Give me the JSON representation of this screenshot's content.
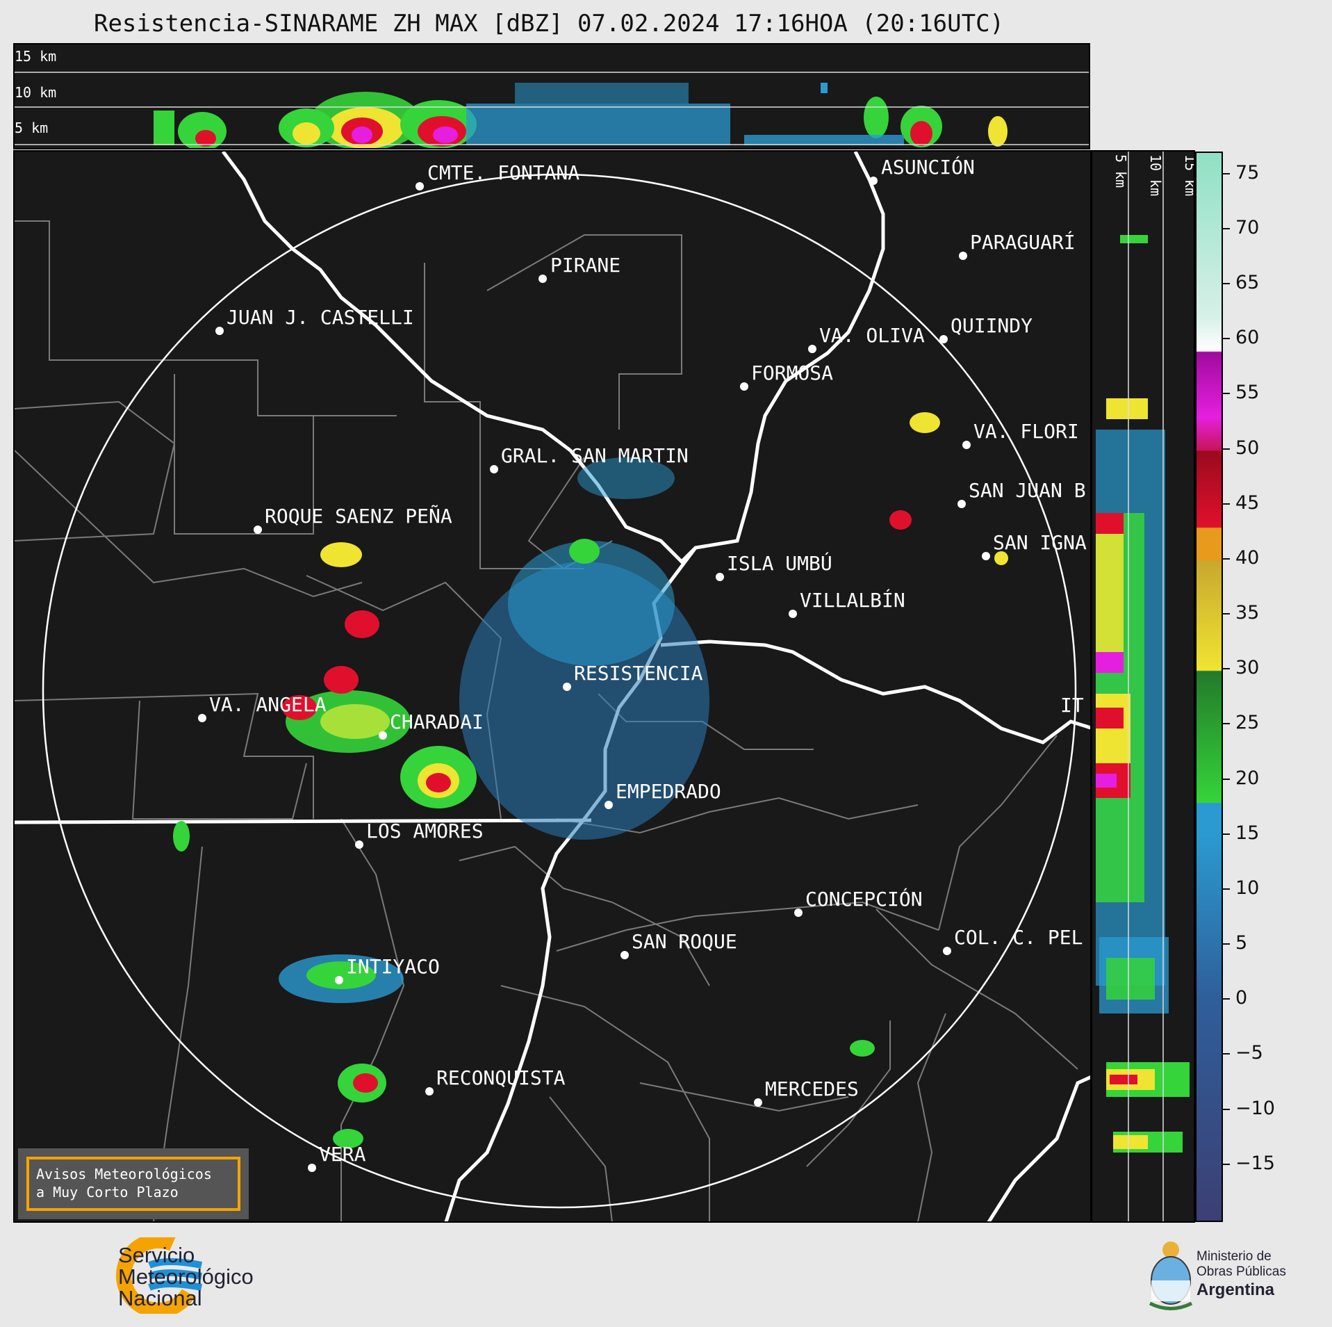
{
  "header": {
    "title": "Resistencia-SINARAME ZH MAX [dBZ] 07.02.2024 17:16HOA (20:16UTC)"
  },
  "top_profile": {
    "levels": [
      {
        "label": "15 km",
        "km": 15
      },
      {
        "label": "10 km",
        "km": 10
      },
      {
        "label": "5 km",
        "km": 5
      }
    ]
  },
  "side_profile": {
    "levels": [
      {
        "label": "5 km",
        "km": 5
      },
      {
        "label": "10 km",
        "km": 10
      },
      {
        "label": "15 km",
        "km": 15
      }
    ]
  },
  "colorbar": {
    "unit": "dBZ",
    "ticks": [
      "75",
      "70",
      "65",
      "60",
      "55",
      "50",
      "45",
      "40",
      "35",
      "30",
      "25",
      "20",
      "15",
      "10",
      "5",
      "0",
      "−5",
      "−10",
      "−15"
    ],
    "tick_values": [
      75,
      70,
      65,
      60,
      55,
      50,
      45,
      40,
      35,
      30,
      25,
      20,
      15,
      10,
      5,
      0,
      -5,
      -10,
      -15
    ],
    "range": [
      -20,
      77
    ],
    "colors": {
      "low": "#3c3f73",
      "blue": "#2a9ad0",
      "green": "#35d43a",
      "yellow": "#f0e432",
      "orange": "#e79a1b",
      "red": "#e0102c",
      "magenta": "#e51fe0",
      "purple": "#a00a9e",
      "white": "#ffffff",
      "teal": "#8fe0c4"
    }
  },
  "map": {
    "cities": [
      {
        "name": "CMTE. FONTANA"
      },
      {
        "name": "PIRANE"
      },
      {
        "name": "ASUNCIÓN"
      },
      {
        "name": "PARAGUARÍ"
      },
      {
        "name": "JUAN J. CASTELLI"
      },
      {
        "name": "VA. OLIVA"
      },
      {
        "name": "QUIINDY"
      },
      {
        "name": "FORMOSA"
      },
      {
        "name": "VA. FLORI"
      },
      {
        "name": "GRAL. SAN MARTIN"
      },
      {
        "name": "SAN JUAN B"
      },
      {
        "name": "ROQUE SAENZ PEÑA"
      },
      {
        "name": "SAN IGNA"
      },
      {
        "name": "ISLA UMBÚ"
      },
      {
        "name": "VILLALBÍN"
      },
      {
        "name": "RESISTENCIA"
      },
      {
        "name": "VA. ANGELA"
      },
      {
        "name": "CHARADAI"
      },
      {
        "name": "IT"
      },
      {
        "name": "EMPEDRADO"
      },
      {
        "name": "LOS AMORES"
      },
      {
        "name": "CONCEPCIÓN"
      },
      {
        "name": "SAN ROQUE"
      },
      {
        "name": "COL. C. PEL"
      },
      {
        "name": "INTIYACO"
      },
      {
        "name": "RECONQUISTA"
      },
      {
        "name": "MERCEDES"
      },
      {
        "name": "VERA"
      }
    ]
  },
  "warning": {
    "line1": "Avisos Meteorológicos",
    "line2": "a Muy Corto Plazo"
  },
  "footer": {
    "smn_line1": "Servicio",
    "smn_line2": "Meteorológico",
    "smn_line3": "Nacional",
    "ministry_line1": "Ministerio de",
    "ministry_line2": "Obras Públicas",
    "ministry_line3": "Argentina"
  }
}
